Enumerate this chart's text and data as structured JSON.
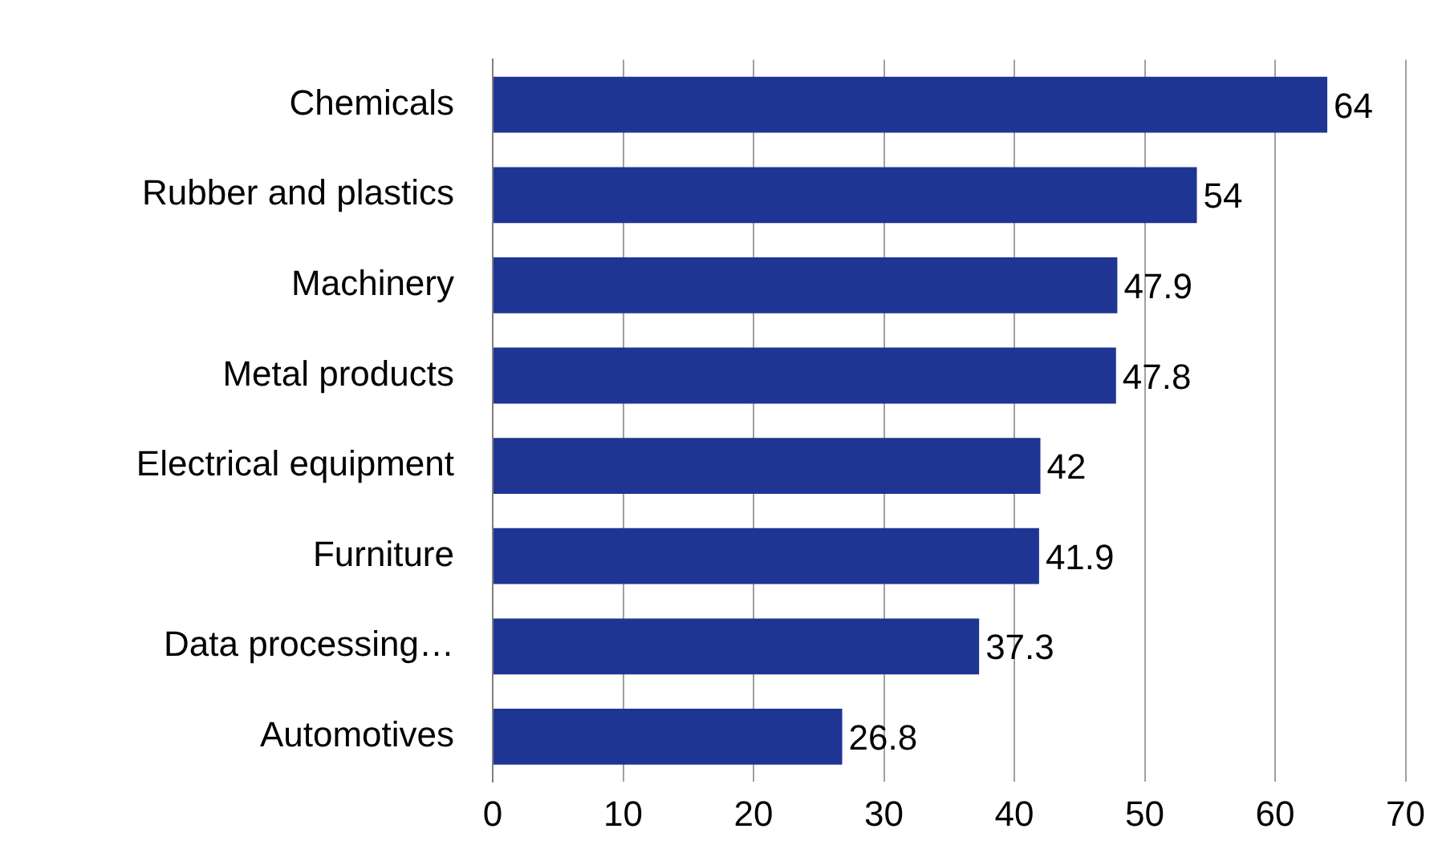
{
  "chart_data": {
    "type": "bar",
    "orientation": "horizontal",
    "categories": [
      "Chemicals",
      "Rubber and plastics",
      "Machinery",
      "Metal products",
      "Electrical equipment",
      "Furniture",
      "Data processing…",
      "Automotives"
    ],
    "values": [
      64,
      54,
      47.9,
      47.8,
      42,
      41.9,
      37.3,
      26.8
    ],
    "color": "#1f3593",
    "xlim": [
      0,
      70
    ],
    "xticks": [
      0,
      10,
      20,
      30,
      40,
      50,
      60,
      70
    ],
    "grid": "x",
    "data_labels": true
  }
}
